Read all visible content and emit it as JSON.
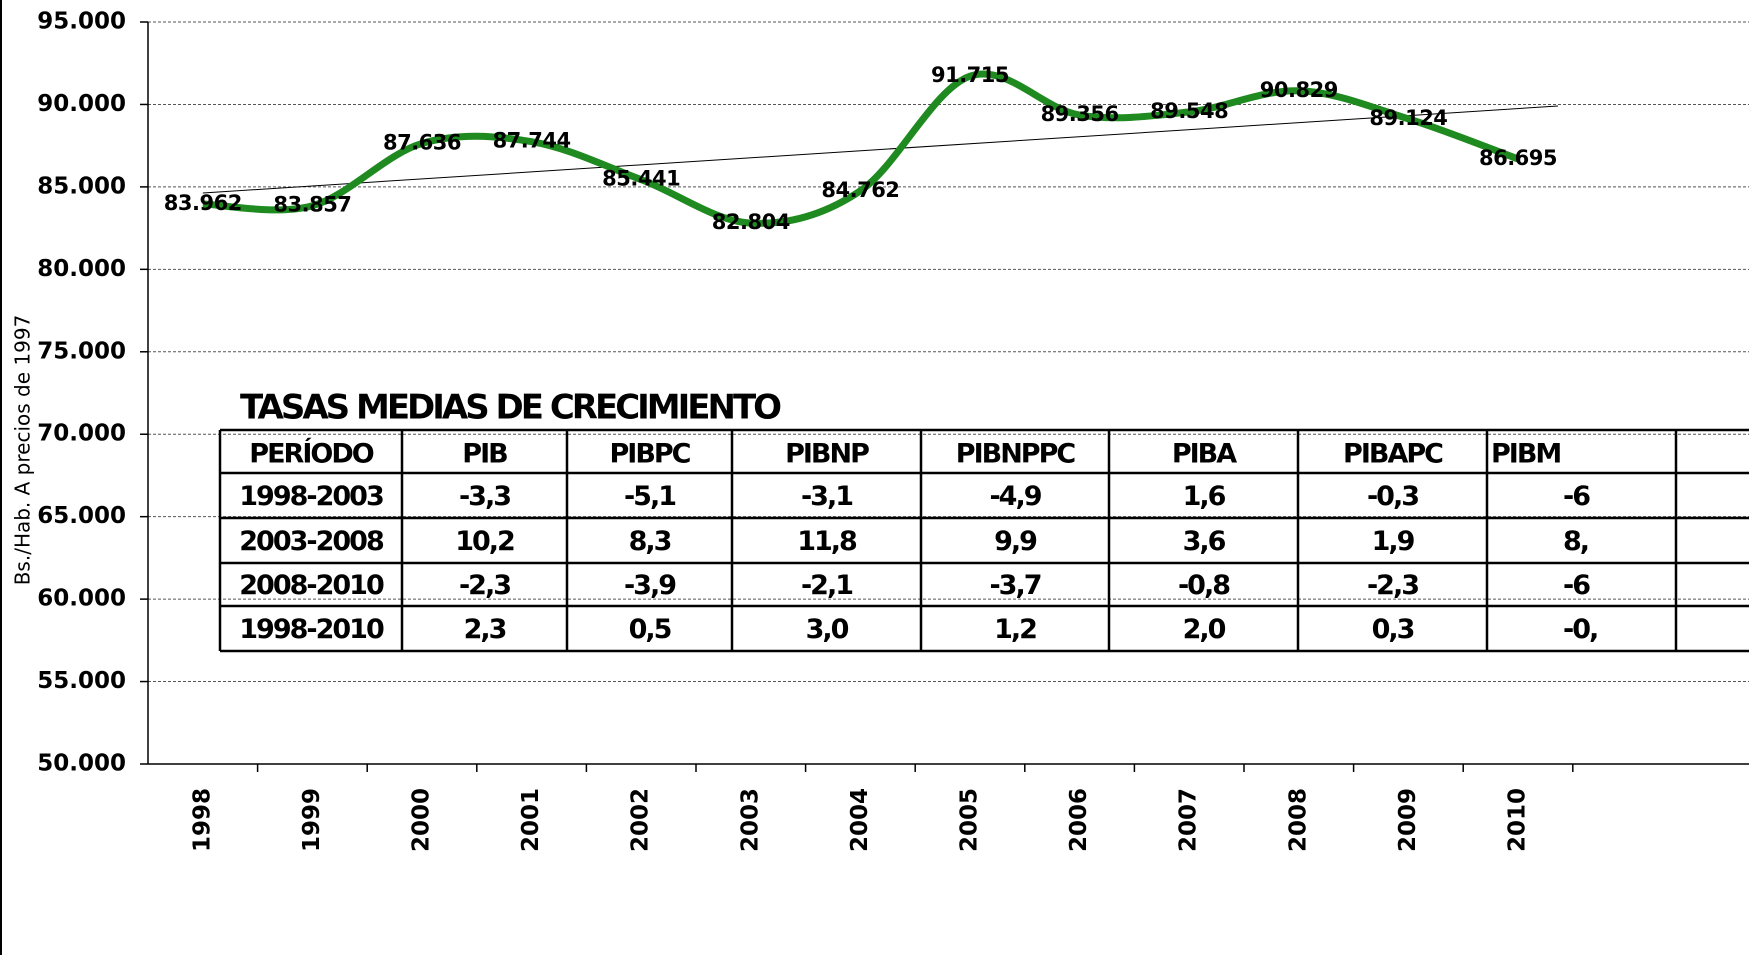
{
  "chart_data": {
    "type": "line",
    "ylabel": "Bs./Hab. A precios de 1997",
    "categories": [
      "1998",
      "1999",
      "2000",
      "2001",
      "2002",
      "2003",
      "2004",
      "2005",
      "2006",
      "2007",
      "2008",
      "2009",
      "2010"
    ],
    "values": [
      83962,
      83857,
      87636,
      87744,
      85441,
      82804,
      84762,
      91715,
      89356,
      89548,
      90829,
      89124,
      86695
    ],
    "value_labels": [
      "83.962",
      "83.857",
      "87.636",
      "87.744",
      "85.441",
      "82.804",
      "84.762",
      "91.715",
      "89.356",
      "89.548",
      "90.829",
      "89.124",
      "86.695"
    ],
    "color": "#1f8a1f",
    "trendline": true,
    "grid": true,
    "ylim": [
      50000,
      95000
    ],
    "yticks": [
      {
        "value": 50000,
        "label": "50.000"
      },
      {
        "value": 55000,
        "label": "55.000"
      },
      {
        "value": 60000,
        "label": "60.000"
      },
      {
        "value": 65000,
        "label": "65.000"
      },
      {
        "value": 70000,
        "label": "70.000"
      },
      {
        "value": 75000,
        "label": "75.000"
      },
      {
        "value": 80000,
        "label": "80.000"
      },
      {
        "value": 85000,
        "label": "85.000"
      },
      {
        "value": 90000,
        "label": "90.000"
      },
      {
        "value": 95000,
        "label": "95.000"
      }
    ]
  },
  "table": {
    "title": "TASAS MEDIAS DE CRECIMIENTO",
    "columns": [
      "PERÍODO",
      "PIB",
      "PIBPC",
      "PIBNP",
      "PIBNPPC",
      "PIBA",
      "PIBAPC",
      "PIBM"
    ],
    "rows": [
      [
        "1998-2003",
        "-3,3",
        "-5,1",
        "-3,1",
        "-4,9",
        "1,6",
        "-0,3",
        "-6"
      ],
      [
        "2003-2008",
        "10,2",
        "8,3",
        "11,8",
        "9,9",
        "3,6",
        "1,9",
        "8,"
      ],
      [
        "2008-2010",
        "-2,3",
        "-3,9",
        "-2,1",
        "-3,7",
        "-0,8",
        "-2,3",
        "-6"
      ],
      [
        "1998-2010",
        "2,3",
        "0,5",
        "3,0",
        "1,2",
        "2,0",
        "0,3",
        "-0,"
      ]
    ]
  }
}
